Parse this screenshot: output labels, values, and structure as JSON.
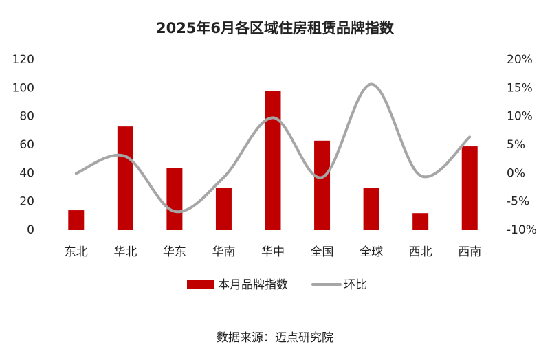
{
  "chart_data": {
    "type": "bar-line",
    "title": "2025年6月各区域住房租赁品牌指数",
    "categories": [
      "东北",
      "华北",
      "华东",
      "华南",
      "华中",
      "全国",
      "全球",
      "西北",
      "西南"
    ],
    "series": [
      {
        "name": "本月品牌指数",
        "color": "#c00000",
        "type": "bar",
        "values": [
          14,
          73,
          44,
          30,
          98,
          63,
          30,
          12,
          59
        ]
      },
      {
        "name": "环比",
        "color": "#a6a6a6",
        "type": "line",
        "axis": "y2",
        "values": [
          0,
          3,
          -6.7,
          -0.7,
          9.8,
          -0.7,
          15.7,
          -0.4,
          6.4
        ]
      }
    ],
    "ylim": [
      0,
      120
    ],
    "yticks": [
      0,
      20,
      40,
      60,
      80,
      100,
      120
    ],
    "y2lim": [
      -10,
      20
    ],
    "y2ticks": [
      {
        "value": -10,
        "label": "-10%"
      },
      {
        "value": -5,
        "label": "-5%"
      },
      {
        "value": 0,
        "label": "0%"
      },
      {
        "value": 5,
        "label": "5%"
      },
      {
        "value": 10,
        "label": "10%"
      },
      {
        "value": 15,
        "label": "15%"
      },
      {
        "value": 20,
        "label": "20%"
      }
    ],
    "source": "数据来源：迈点研究院"
  }
}
